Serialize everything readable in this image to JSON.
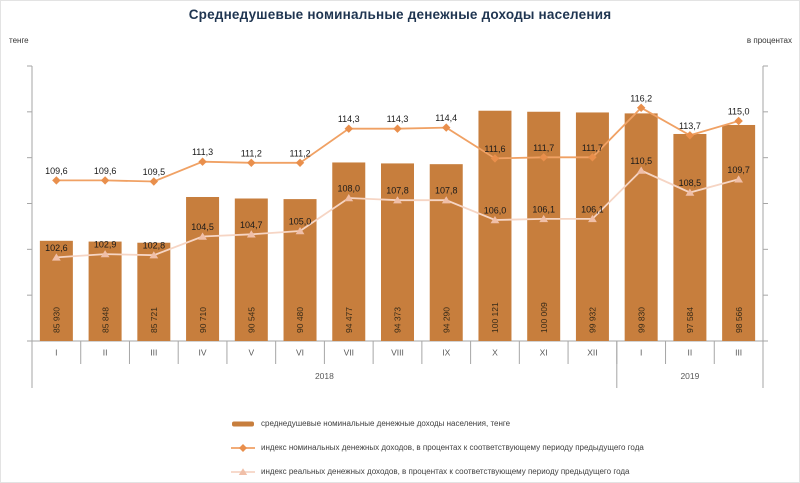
{
  "title": "Среднедушевые номинальные денежные доходы населения",
  "left_axis_unit": "тенге",
  "right_axis_unit": "в процентах",
  "chart_data": {
    "type": "combo-bar-line",
    "categories": [
      "I",
      "II",
      "III",
      "IV",
      "V",
      "VI",
      "VII",
      "VIII",
      "IX",
      "X",
      "XI",
      "XII",
      "I",
      "II",
      "III"
    ],
    "year_groups": [
      {
        "label": "2018",
        "span": 12
      },
      {
        "label": "2019",
        "span": 3
      }
    ],
    "bar_series": {
      "name": "среднедушевые номинальные денежные доходы населения, тенге",
      "axis": "left",
      "color": "#C77E3D",
      "values": [
        85930,
        85848,
        85721,
        90710,
        90545,
        90480,
        94477,
        94373,
        94290,
        100121,
        100009,
        99932,
        99830,
        97584,
        98566
      ]
    },
    "line_series": [
      {
        "name": "индекс номинальных денежных доходов, в процентах к соответствующему периоду предыдущего года",
        "axis": "right",
        "marker": "diamond",
        "line_color": "#F0A164",
        "marker_color": "#E98F4C",
        "values": [
          109.6,
          109.6,
          109.5,
          111.3,
          111.2,
          111.2,
          114.3,
          114.3,
          114.4,
          111.6,
          111.7,
          111.7,
          116.2,
          113.7,
          115.0
        ]
      },
      {
        "name": "индекс реальных денежных доходов, в процентах к соответствующему периоду предыдущего года",
        "axis": "right",
        "marker": "triangle",
        "line_color": "#F6D5C4",
        "marker_color": "#F0BFA8",
        "values": [
          102.6,
          102.9,
          102.8,
          104.5,
          104.7,
          105.0,
          108.0,
          107.8,
          107.8,
          106.0,
          106.1,
          106.1,
          110.5,
          108.5,
          109.7
        ]
      }
    ],
    "left_axis": {
      "min": 75000,
      "max": 105000,
      "ticks": 7,
      "labels_visible": false
    },
    "right_axis": {
      "min": 95,
      "max": 120,
      "ticks": 7,
      "labels_visible": false
    },
    "grid": false,
    "legend_position": "bottom-left"
  }
}
